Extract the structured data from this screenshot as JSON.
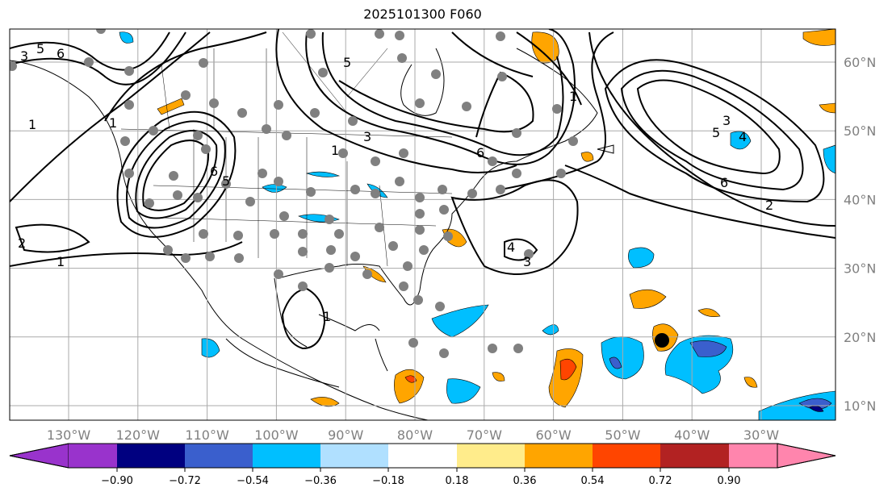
{
  "title": "2025101300 F060",
  "map": {
    "lon_labels": [
      "130°W",
      "120°W",
      "110°W",
      "100°W",
      "90°W",
      "80°W",
      "70°W",
      "60°W",
      "50°W",
      "40°W",
      "30°W"
    ],
    "lat_labels": [
      "60°N",
      "50°N",
      "40°N",
      "30°N",
      "20°N",
      "10°N"
    ],
    "contour_labels": [
      "6",
      "5",
      "3",
      "1",
      "1",
      "2",
      "1",
      "6",
      "5",
      "5",
      "3",
      "1",
      "6",
      "4",
      "3",
      "1",
      "3",
      "5",
      "6",
      "2",
      "4",
      "1"
    ]
  },
  "colorbar": {
    "ticks": [
      "−0.90",
      "−0.72",
      "−0.54",
      "−0.36",
      "−0.18",
      "0.18",
      "0.36",
      "0.54",
      "0.72",
      "0.90"
    ],
    "colors": [
      "#9933cc",
      "#000080",
      "#3a5fcd",
      "#00bfff",
      "#b0e0ff",
      "#ffffff",
      "#ffec8b",
      "#ffa500",
      "#ff4500",
      "#b22222",
      "#ff85ad"
    ]
  }
}
